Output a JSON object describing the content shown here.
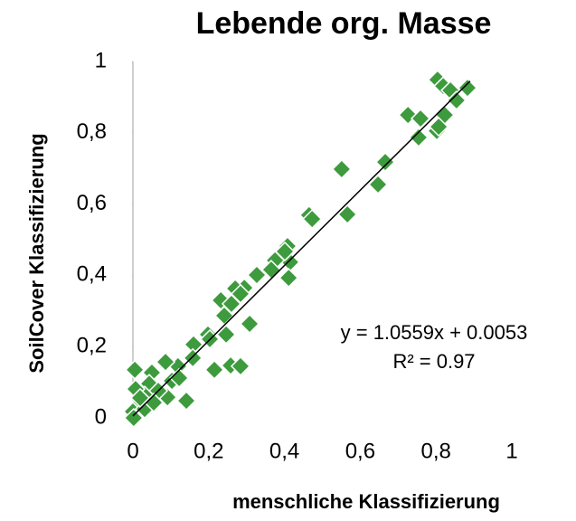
{
  "chart_data": {
    "type": "scatter",
    "title": "Lebende org. Masse",
    "x_label": "menschliche Klassifizierung",
    "y_label": "SoilCover Klassifizierung",
    "annotations": [
      "y = 1.0559x + 0.0053",
      "R² = 0.97"
    ],
    "color": "#3d9b3d",
    "x": [
      0.804,
      0.819,
      0.883,
      0.838,
      0.726,
      0.759,
      0.823,
      0.854,
      0.802,
      0.754,
      0.807,
      0.666,
      0.551,
      0.647,
      0.566,
      0.465,
      0.473,
      0.408,
      0.389,
      0.415,
      0.375,
      0.411,
      0.327,
      0.294,
      0.27,
      0.232,
      0.241,
      0.26,
      0.284,
      0.308,
      0.198,
      0.246,
      0.16,
      0.215,
      0.258,
      0.284,
      0.158,
      0.119,
      0.086,
      0.05,
      0.005,
      0.043,
      0.103,
      0.141,
      0.091,
      0.067,
      0.031,
      0.007,
      0.014,
      0,
      0.031,
      0.055,
      0.002,
      0.019,
      0.122,
      0.203,
      0.365,
      0.401
    ],
    "values": [
      0.949,
      0.931,
      0.926,
      0.919,
      0.85,
      0.84,
      0.85,
      0.891,
      0.805,
      0.787,
      0.817,
      0.718,
      0.698,
      0.655,
      0.571,
      0.569,
      0.558,
      0.482,
      0.454,
      0.437,
      0.442,
      0.393,
      0.401,
      0.365,
      0.363,
      0.33,
      0.287,
      0.32,
      0.348,
      0.264,
      0.234,
      0.234,
      0.206,
      0.135,
      0.147,
      0.145,
      0.168,
      0.145,
      0.157,
      0.127,
      0.135,
      0.096,
      0.104,
      0.048,
      0.058,
      0.076,
      0.063,
      0.081,
      0.036,
      0.018,
      0.025,
      0.043,
      0,
      0.056,
      0.112,
      0.221,
      0.416,
      0.467
    ],
    "trendline": {
      "slope": 1.0559,
      "intercept": 0.0053,
      "xlim": [
        0,
        0.89
      ]
    },
    "xlim": [
      0,
      1
    ],
    "ylim": [
      0,
      1
    ],
    "xticks": [
      0,
      {
        "value": 0.2,
        "label": "0,2"
      },
      {
        "value": 0.4,
        "label": "0,4"
      },
      {
        "value": 0.6,
        "label": "0,6"
      },
      {
        "value": 0.8,
        "label": "0,8"
      },
      1
    ],
    "yticks": [
      0,
      {
        "value": 0.2,
        "label": "0,2"
      },
      {
        "value": 0.4,
        "label": "0,4"
      },
      {
        "value": 0.6,
        "label": "0,6"
      },
      {
        "value": 0.8,
        "label": "0,8"
      },
      1
    ]
  }
}
